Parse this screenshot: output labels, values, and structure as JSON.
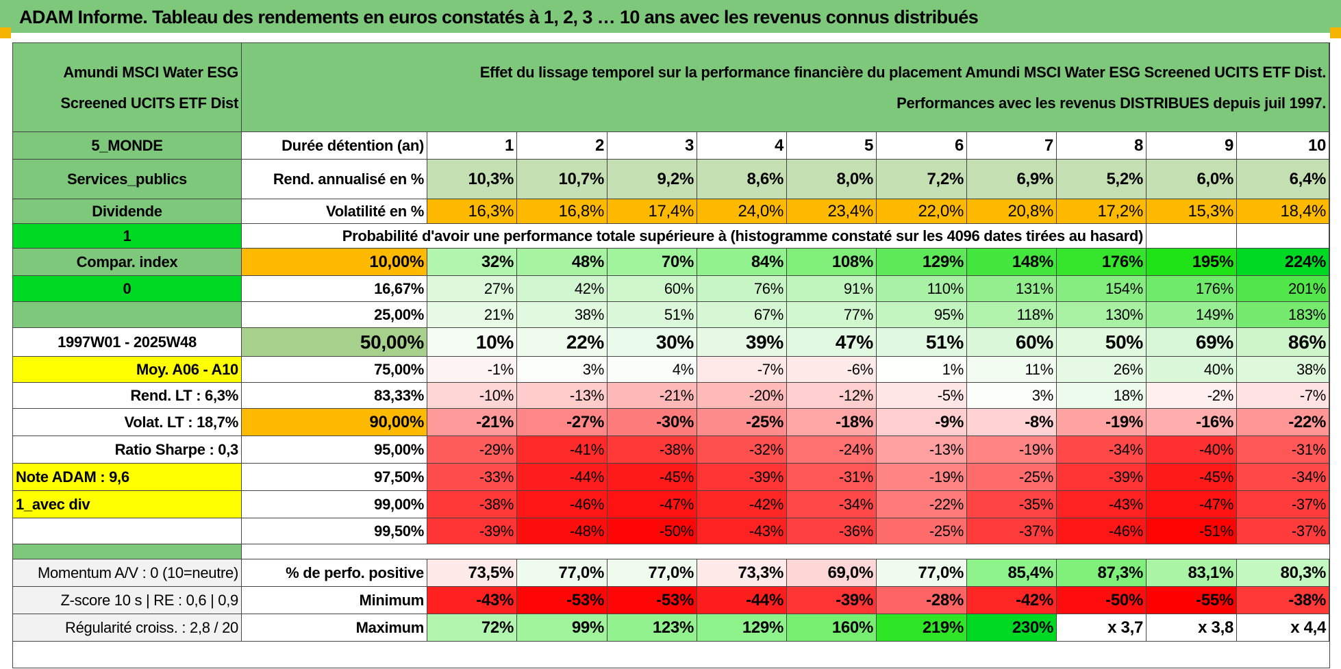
{
  "title": "ADAM Informe. Tableau des rendements en euros constatés à 1, 2, 3 … 10 ans avec les revenus connus distribués",
  "header": {
    "fund_name": "Amundi MSCI Water ESG Screened UCITS ETF Dist",
    "description_line1": "Effet du lissage temporel sur la performance financière du placement Amundi MSCI Water ESG Screened UCITS ETF Dist.",
    "description_line2": "Performances avec les revenus DISTRIBUES depuis juil 1997."
  },
  "rows": {
    "duration": {
      "side": "5_MONDE",
      "label": "Durée détention (an)",
      "values": [
        "1",
        "2",
        "3",
        "4",
        "5",
        "6",
        "7",
        "8",
        "9",
        "10"
      ]
    },
    "return": {
      "side": "Services_publics",
      "label": "Rend. annualisé en %",
      "values": [
        "10,3%",
        "10,7%",
        "9,2%",
        "8,6%",
        "8,0%",
        "7,2%",
        "6,9%",
        "5,2%",
        "6,0%",
        "6,4%"
      ]
    },
    "volatility": {
      "side": "Dividende",
      "label": "Volatilité en %",
      "values": [
        "16,3%",
        "16,8%",
        "17,4%",
        "24,0%",
        "23,4%",
        "22,0%",
        "20,8%",
        "17,2%",
        "15,3%",
        "18,4%"
      ]
    },
    "prob_header": {
      "side": "1",
      "label": "Probabilité d'avoir une performance totale supérieure à (histogramme constaté sur les 4096 dates tirées au hasard)"
    }
  },
  "prob_rows": [
    {
      "side": "Compar. index",
      "pct": "10,00%",
      "values": [
        "32%",
        "48%",
        "70%",
        "84%",
        "108%",
        "129%",
        "148%",
        "176%",
        "195%",
        "224%"
      ],
      "colors": [
        "#b2f5ae",
        "#a6f4a2",
        "#a0f59c",
        "#92f38e",
        "#7fef7a",
        "#5eea58",
        "#44e73d",
        "#34e52c",
        "#20e317",
        "#00d924"
      ]
    },
    {
      "side": "0",
      "pct": "16,67%",
      "values": [
        "27%",
        "42%",
        "60%",
        "76%",
        "91%",
        "110%",
        "131%",
        "154%",
        "176%",
        "201%"
      ],
      "colors": [
        "#ddf8db",
        "#d2f7d0",
        "#cef7cb",
        "#c7f6c4",
        "#c0f5bd",
        "#a9f2a5",
        "#93ef8e",
        "#86ed81",
        "#70ea6a",
        "#52e64a"
      ]
    },
    {
      "side": "",
      "pct": "25,00%",
      "values": [
        "21%",
        "38%",
        "51%",
        "67%",
        "77%",
        "95%",
        "118%",
        "130%",
        "149%",
        "183%"
      ],
      "colors": [
        "#e7fae6",
        "#e1f9df",
        "#dcf8da",
        "#d5f7d3",
        "#d1f7ce",
        "#c3f5c0",
        "#b1f2ad",
        "#a8f1a3",
        "#98ee92",
        "#76ea6f"
      ]
    },
    {
      "side": "1997W01 - 2025W48",
      "pct": "50,00%",
      "values": [
        "10%",
        "22%",
        "30%",
        "39%",
        "47%",
        "51%",
        "60%",
        "50%",
        "69%",
        "86%"
      ],
      "colors": [
        "#f4fcf3",
        "#eefbed",
        "#eafaea",
        "#e6f9e5",
        "#e2f9e1",
        "#e0f8df",
        "#dcf8da",
        "#e1f9df",
        "#d8f7d6",
        "#cff6cb"
      ]
    },
    {
      "side": "Moy. A06 - A10",
      "pct": "75,00%",
      "values": [
        "-1%",
        "3%",
        "4%",
        "-7%",
        "-6%",
        "1%",
        "11%",
        "26%",
        "40%",
        "38%"
      ],
      "colors": [
        "#fff4f4",
        "#fbfefb",
        "#fafefa",
        "#ffe8e8",
        "#ffeaea",
        "#fdfffd",
        "#f2fcf1",
        "#e5f9e4",
        "#dcf8da",
        "#def8dc"
      ]
    },
    {
      "side": "Rend. LT :   6,3%",
      "pct": "83,33%",
      "values": [
        "-10%",
        "-13%",
        "-21%",
        "-20%",
        "-12%",
        "-5%",
        "3%",
        "18%",
        "-2%",
        "-7%"
      ],
      "colors": [
        "#ffd6d6",
        "#ffcccc",
        "#ffb8b8",
        "#ffbaba",
        "#ffcfcf",
        "#ffe6e6",
        "#fbfefb",
        "#ecfbeb",
        "#fff0f0",
        "#ffe3e3"
      ]
    },
    {
      "side": "Volat. LT :   18,7%",
      "pct": "90,00%",
      "values": [
        "-21%",
        "-27%",
        "-30%",
        "-25%",
        "-18%",
        "-9%",
        "-8%",
        "-19%",
        "-16%",
        "-22%"
      ],
      "colors": [
        "#ff9a9a",
        "#ff8686",
        "#ff7c7c",
        "#ff8c8c",
        "#ffa6a6",
        "#ffcfcf",
        "#ffd3d3",
        "#ffa2a2",
        "#ffaeae",
        "#ff9696"
      ]
    },
    {
      "side": "Ratio Sharpe :    0,3",
      "pct": "95,00%",
      "values": [
        "-29%",
        "-41%",
        "-38%",
        "-32%",
        "-24%",
        "-13%",
        "-19%",
        "-34%",
        "-40%",
        "-31%"
      ],
      "colors": [
        "#ff5c5c",
        "#ff2b2b",
        "#ff3838",
        "#ff5050",
        "#ff7070",
        "#ffa0a0",
        "#ff8585",
        "#ff4848",
        "#ff3030",
        "#ff5656"
      ]
    },
    {
      "side": "Note ADAM : 9,6",
      "pct": "97,50%",
      "values": [
        "-33%",
        "-44%",
        "-45%",
        "-39%",
        "-31%",
        "-19%",
        "-25%",
        "-39%",
        "-45%",
        "-34%"
      ],
      "colors": [
        "#ff4c4c",
        "#ff1e1e",
        "#ff1a1a",
        "#ff3434",
        "#ff5656",
        "#ff8585",
        "#ff6c6c",
        "#ff3434",
        "#ff1a1a",
        "#ff4848"
      ]
    },
    {
      "side": "1_avec div",
      "pct": "99,00%",
      "values": [
        "-38%",
        "-46%",
        "-47%",
        "-42%",
        "-34%",
        "-22%",
        "-35%",
        "-43%",
        "-47%",
        "-37%"
      ],
      "colors": [
        "#ff3838",
        "#ff1616",
        "#ff1212",
        "#ff2626",
        "#ff4848",
        "#ff7a7a",
        "#ff4444",
        "#ff2222",
        "#ff1212",
        "#ff3c3c"
      ]
    },
    {
      "side": "",
      "pct": "99,50%",
      "values": [
        "-39%",
        "-48%",
        "-50%",
        "-43%",
        "-36%",
        "-25%",
        "-37%",
        "-46%",
        "-51%",
        "-37%"
      ],
      "colors": [
        "#ff3434",
        "#ff0e0e",
        "#ff0606",
        "#ff2222",
        "#ff4040",
        "#ff6c6c",
        "#ff3c3c",
        "#ff1616",
        "#ff0202",
        "#ff3c3c"
      ]
    }
  ],
  "bottom_rows": [
    {
      "side": "Momentum A/V : 0 (10=neutre)",
      "label": "% de perfo. positive",
      "values": [
        "73,5%",
        "77,0%",
        "77,0%",
        "73,3%",
        "69,0%",
        "77,0%",
        "85,4%",
        "87,3%",
        "83,1%",
        "80,3%"
      ],
      "colors": [
        "#ffeaea",
        "#eefbed",
        "#eefbed",
        "#ffeaea",
        "#ffd6d6",
        "#eefbed",
        "#8ef38a",
        "#7ff07a",
        "#a9f5a5",
        "#c3f8c0"
      ]
    },
    {
      "side": "Z-score 10 s | RE : 0,6 | 0,9",
      "label": "Minimum",
      "values": [
        "-43%",
        "-53%",
        "-53%",
        "-44%",
        "-39%",
        "-28%",
        "-42%",
        "-50%",
        "-55%",
        "-38%"
      ],
      "colors": [
        "#ff2020",
        "#ff0606",
        "#ff0606",
        "#ff1e1e",
        "#ff3434",
        "#ff6464",
        "#ff2626",
        "#ff0c0c",
        "#ff0000",
        "#ff3838"
      ]
    },
    {
      "side": "Régularité croiss. : 2,8 / 20",
      "label": "Maximum",
      "values": [
        "72%",
        "99%",
        "123%",
        "129%",
        "160%",
        "219%",
        "230%",
        "x 3,7",
        "x 3,8",
        "x 4,4"
      ],
      "colors": [
        "#b2f5ae",
        "#a0f59c",
        "#92f38e",
        "#8ef38a",
        "#76ef71",
        "#2ee526",
        "#00d924",
        "#ffffff",
        "#ffffff",
        "#ffffff"
      ]
    }
  ]
}
